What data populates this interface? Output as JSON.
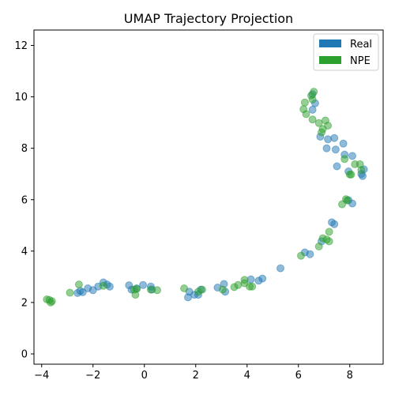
{
  "chart_data": {
    "type": "scatter",
    "title": "UMAP Trajectory Projection",
    "xlabel": "",
    "ylabel": "",
    "xlim": [
      -4.3,
      9.3
    ],
    "ylim": [
      -0.4,
      12.6
    ],
    "xticks": [
      -4,
      -2,
      0,
      2,
      4,
      6,
      8
    ],
    "yticks": [
      0,
      2,
      4,
      6,
      8,
      10,
      12
    ],
    "grid": false,
    "legend_position": "top-right",
    "series": [
      {
        "name": "Real",
        "color": "#1f77b4",
        "points": [
          [
            -2.6,
            2.37
          ],
          [
            -2.5,
            2.45
          ],
          [
            -2.4,
            2.4
          ],
          [
            -2.2,
            2.55
          ],
          [
            -2.0,
            2.48
          ],
          [
            -1.8,
            2.62
          ],
          [
            -1.6,
            2.78
          ],
          [
            -1.45,
            2.7
          ],
          [
            -1.35,
            2.62
          ],
          [
            -0.6,
            2.67
          ],
          [
            -0.5,
            2.5
          ],
          [
            -0.3,
            2.55
          ],
          [
            -0.05,
            2.68
          ],
          [
            0.25,
            2.62
          ],
          [
            0.3,
            2.5
          ],
          [
            1.7,
            2.2
          ],
          [
            1.75,
            2.42
          ],
          [
            1.95,
            2.3
          ],
          [
            2.1,
            2.3
          ],
          [
            2.2,
            2.5
          ],
          [
            2.85,
            2.58
          ],
          [
            3.1,
            2.72
          ],
          [
            3.15,
            2.42
          ],
          [
            4.15,
            2.9
          ],
          [
            4.45,
            2.85
          ],
          [
            4.6,
            2.93
          ],
          [
            5.3,
            3.33
          ],
          [
            6.25,
            3.95
          ],
          [
            6.45,
            3.88
          ],
          [
            6.9,
            4.38
          ],
          [
            7.3,
            5.12
          ],
          [
            7.4,
            5.05
          ],
          [
            7.95,
            5.98
          ],
          [
            8.1,
            5.85
          ],
          [
            6.55,
            9.5
          ],
          [
            6.65,
            9.75
          ],
          [
            6.55,
            10.1
          ],
          [
            6.85,
            8.45
          ],
          [
            7.1,
            8.0
          ],
          [
            7.15,
            8.35
          ],
          [
            7.4,
            8.4
          ],
          [
            7.45,
            7.95
          ],
          [
            7.75,
            8.18
          ],
          [
            7.8,
            7.75
          ],
          [
            7.5,
            7.3
          ],
          [
            7.95,
            7.1
          ],
          [
            8.1,
            7.7
          ],
          [
            8.45,
            7.0
          ],
          [
            8.55,
            7.18
          ],
          [
            8.5,
            6.92
          ]
        ]
      },
      {
        "name": "NPE",
        "color": "#2ca02c",
        "points": [
          [
            -3.8,
            2.12
          ],
          [
            -3.7,
            2.1
          ],
          [
            -3.65,
            2.0
          ],
          [
            -3.6,
            2.05
          ],
          [
            -2.9,
            2.38
          ],
          [
            -2.55,
            2.7
          ],
          [
            -1.6,
            2.65
          ],
          [
            -0.4,
            2.5
          ],
          [
            -0.35,
            2.3
          ],
          [
            -0.3,
            2.53
          ],
          [
            0.25,
            2.5
          ],
          [
            0.5,
            2.48
          ],
          [
            1.55,
            2.55
          ],
          [
            2.1,
            2.42
          ],
          [
            2.25,
            2.5
          ],
          [
            3.05,
            2.5
          ],
          [
            3.5,
            2.6
          ],
          [
            3.65,
            2.68
          ],
          [
            3.9,
            2.88
          ],
          [
            3.9,
            2.75
          ],
          [
            4.1,
            2.62
          ],
          [
            4.2,
            2.62
          ],
          [
            6.1,
            3.82
          ],
          [
            6.8,
            4.18
          ],
          [
            6.95,
            4.5
          ],
          [
            7.1,
            4.45
          ],
          [
            7.2,
            4.75
          ],
          [
            7.2,
            4.38
          ],
          [
            7.7,
            5.82
          ],
          [
            7.85,
            6.02
          ],
          [
            7.9,
            5.97
          ],
          [
            6.2,
            9.52
          ],
          [
            6.25,
            9.78
          ],
          [
            6.3,
            9.33
          ],
          [
            6.5,
            10.05
          ],
          [
            6.55,
            9.9
          ],
          [
            6.6,
            10.2
          ],
          [
            6.55,
            9.12
          ],
          [
            6.8,
            8.98
          ],
          [
            6.9,
            8.62
          ],
          [
            6.95,
            8.75
          ],
          [
            7.05,
            9.08
          ],
          [
            7.15,
            8.88
          ],
          [
            7.8,
            7.58
          ],
          [
            8.0,
            6.98
          ],
          [
            8.05,
            6.98
          ],
          [
            8.2,
            7.38
          ],
          [
            8.4,
            7.38
          ],
          [
            8.45,
            7.15
          ]
        ]
      }
    ]
  }
}
